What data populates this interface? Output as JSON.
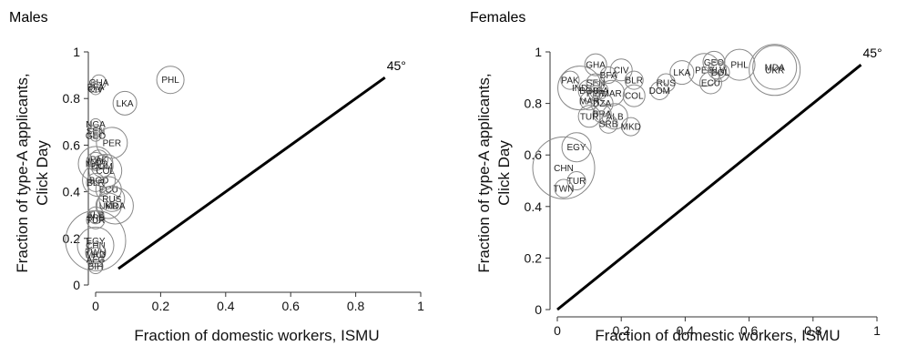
{
  "chart_data": [
    {
      "type": "scatter",
      "title": "Males",
      "xlabel": "Fraction of domestic workers, ISMU",
      "ylabel_lines": [
        "Fraction of type-A applicants,",
        "Click Day"
      ],
      "xlim": [
        0,
        1
      ],
      "ylim": [
        0,
        1
      ],
      "x_ticks": [
        "0",
        "0.2",
        "0.4",
        "0.6",
        "0.8",
        "1"
      ],
      "y_ticks": [
        "0",
        "0.2",
        "0.4",
        "0.6",
        "0.8",
        "1"
      ],
      "reference_line": {
        "label": "45°",
        "from": [
          0.07,
          0.07
        ],
        "to": [
          0.89,
          0.89
        ]
      },
      "points": [
        {
          "label": "PHL",
          "x": 0.23,
          "y": 0.88,
          "r": 15
        },
        {
          "label": "GHA",
          "x": 0.01,
          "y": 0.87,
          "r": 8
        },
        {
          "label": "BFA",
          "x": 0.0,
          "y": 0.85,
          "r": 6
        },
        {
          "label": "CIV",
          "x": 0.0,
          "y": 0.84,
          "r": 6
        },
        {
          "label": "LKA",
          "x": 0.09,
          "y": 0.78,
          "r": 13
        },
        {
          "label": "NGA",
          "x": 0.0,
          "y": 0.69,
          "r": 6
        },
        {
          "label": "SEN",
          "x": 0.0,
          "y": 0.66,
          "r": 7
        },
        {
          "label": "GEO",
          "x": 0.0,
          "y": 0.64,
          "r": 6
        },
        {
          "label": "PER",
          "x": 0.05,
          "y": 0.61,
          "r": 17
        },
        {
          "label": "PAK",
          "x": 0.01,
          "y": 0.54,
          "r": 10
        },
        {
          "label": "IND",
          "x": 0.0,
          "y": 0.53,
          "r": 10
        },
        {
          "label": "MAR",
          "x": 0.0,
          "y": 0.52,
          "r": 19
        },
        {
          "label": "DOM",
          "x": 0.02,
          "y": 0.51,
          "r": 12
        },
        {
          "label": "COL",
          "x": 0.03,
          "y": 0.49,
          "r": 18
        },
        {
          "label": "BGD",
          "x": 0.01,
          "y": 0.45,
          "r": 18
        },
        {
          "label": "BLR",
          "x": 0.0,
          "y": 0.44,
          "r": 10
        },
        {
          "label": "ECU",
          "x": 0.04,
          "y": 0.41,
          "r": 14
        },
        {
          "label": "RUS",
          "x": 0.05,
          "y": 0.37,
          "r": 14
        },
        {
          "label": "UKR",
          "x": 0.04,
          "y": 0.34,
          "r": 14
        },
        {
          "label": "MDA",
          "x": 0.06,
          "y": 0.34,
          "r": 20
        },
        {
          "label": "ALB",
          "x": 0.0,
          "y": 0.3,
          "r": 9
        },
        {
          "label": "SRB",
          "x": 0.0,
          "y": 0.29,
          "r": 7
        },
        {
          "label": "TUR",
          "x": 0.0,
          "y": 0.28,
          "r": 10
        },
        {
          "label": "EGY",
          "x": 0.0,
          "y": 0.19,
          "r": 33
        },
        {
          "label": "CHN",
          "x": 0.0,
          "y": 0.17,
          "r": 20
        },
        {
          "label": "TWN",
          "x": 0.0,
          "y": 0.14,
          "r": 11
        },
        {
          "label": "MKD",
          "x": 0.0,
          "y": 0.13,
          "r": 8
        },
        {
          "label": "AFG",
          "x": 0.0,
          "y": 0.11,
          "r": 8
        },
        {
          "label": "BIH",
          "x": 0.0,
          "y": 0.08,
          "r": 8
        }
      ]
    },
    {
      "type": "scatter",
      "title": "Females",
      "xlabel": "Fraction of domestic workers, ISMU",
      "ylabel_lines": [
        "Fraction of type-A applicants,",
        "Click Day"
      ],
      "xlim": [
        0,
        1
      ],
      "ylim": [
        0,
        1
      ],
      "x_ticks": [
        "0",
        "0.2",
        "0.4",
        "0.6",
        "0.8",
        "1"
      ],
      "y_ticks": [
        "0",
        "0.2",
        "0.4",
        "0.6",
        "0.8",
        "1"
      ],
      "reference_line": {
        "label": "45°",
        "from": [
          0.0,
          0.0
        ],
        "to": [
          0.95,
          0.95
        ]
      },
      "points": [
        {
          "label": "GEO",
          "x": 0.49,
          "y": 0.96,
          "r": 12
        },
        {
          "label": "PHL",
          "x": 0.57,
          "y": 0.95,
          "r": 17
        },
        {
          "label": "MDA",
          "x": 0.68,
          "y": 0.94,
          "r": 24
        },
        {
          "label": "UKR",
          "x": 0.68,
          "y": 0.93,
          "r": 28
        },
        {
          "label": "PER",
          "x": 0.46,
          "y": 0.93,
          "r": 18
        },
        {
          "label": "SLV",
          "x": 0.5,
          "y": 0.93,
          "r": 10
        },
        {
          "label": "BOL",
          "x": 0.51,
          "y": 0.92,
          "r": 10
        },
        {
          "label": "ECU",
          "x": 0.48,
          "y": 0.88,
          "r": 12
        },
        {
          "label": "GHA",
          "x": 0.12,
          "y": 0.95,
          "r": 12
        },
        {
          "label": "CIV",
          "x": 0.2,
          "y": 0.93,
          "r": 12
        },
        {
          "label": "BFA",
          "x": 0.16,
          "y": 0.91,
          "r": 9
        },
        {
          "label": "BLR",
          "x": 0.24,
          "y": 0.89,
          "r": 10
        },
        {
          "label": "LKA",
          "x": 0.39,
          "y": 0.92,
          "r": 13
        },
        {
          "label": "RUS",
          "x": 0.34,
          "y": 0.88,
          "r": 10
        },
        {
          "label": "DOM",
          "x": 0.32,
          "y": 0.85,
          "r": 10
        },
        {
          "label": "PAK",
          "x": 0.04,
          "y": 0.89,
          "r": 10
        },
        {
          "label": "SEN",
          "x": 0.12,
          "y": 0.88,
          "r": 10
        },
        {
          "label": "IND",
          "x": 0.07,
          "y": 0.86,
          "r": 24
        },
        {
          "label": "BGD",
          "x": 0.1,
          "y": 0.85,
          "r": 12
        },
        {
          "label": "NGA",
          "x": 0.13,
          "y": 0.85,
          "r": 10
        },
        {
          "label": "PER2",
          "display": "PER",
          "x": 0.12,
          "y": 0.84,
          "r": 8
        },
        {
          "label": "MAR",
          "x": 0.17,
          "y": 0.84,
          "r": 14
        },
        {
          "label": "COL",
          "x": 0.24,
          "y": 0.83,
          "r": 12
        },
        {
          "label": "MAR2",
          "display": "MAR",
          "x": 0.1,
          "y": 0.81,
          "r": 10
        },
        {
          "label": "DZA",
          "x": 0.14,
          "y": 0.8,
          "r": 12
        },
        {
          "label": "BRA",
          "x": 0.14,
          "y": 0.76,
          "r": 10
        },
        {
          "label": "TUR",
          "x": 0.1,
          "y": 0.75,
          "r": 12
        },
        {
          "label": "ALB",
          "x": 0.18,
          "y": 0.75,
          "r": 14
        },
        {
          "label": "SRB",
          "x": 0.16,
          "y": 0.72,
          "r": 10
        },
        {
          "label": "MKD",
          "x": 0.23,
          "y": 0.71,
          "r": 10
        },
        {
          "label": "EGY",
          "x": 0.06,
          "y": 0.63,
          "r": 16
        },
        {
          "label": "CHN",
          "x": 0.02,
          "y": 0.55,
          "r": 34
        },
        {
          "label": "TUR2",
          "display": "TUR",
          "x": 0.06,
          "y": 0.5,
          "r": 10
        },
        {
          "label": "TWN",
          "x": 0.02,
          "y": 0.47,
          "r": 10
        }
      ]
    }
  ]
}
